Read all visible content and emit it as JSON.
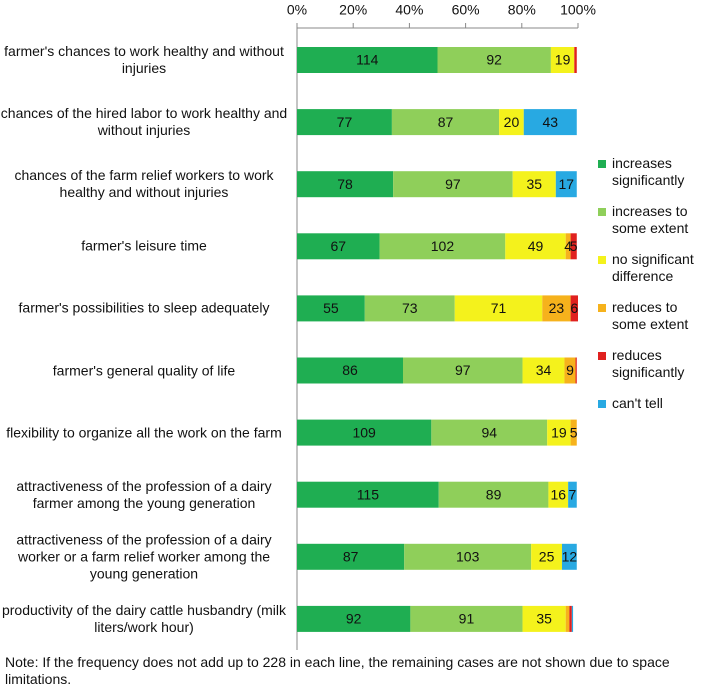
{
  "chart_data": {
    "type": "stacked-bar-horizontal",
    "categories": [
      "farmer's chances to work healthy and without injuries",
      "chances of the hired labor to work healthy and without injuries",
      "chances of the farm relief workers to work healthy and without injuries",
      "farmer's leisure time",
      "farmer's possibilities to sleep adequately",
      "farmer's general quality of life",
      "flexibility to organize all the work on the farm",
      "attractiveness of the profession of a dairy farmer among the young generation",
      "attractiveness of the profession of a dairy worker or a farm relief worker among the young generation",
      "productivity of the dairy cattle husbandry (milk liters/work hour)"
    ],
    "series": [
      {
        "name": "increases significantly",
        "color": "#1fae52",
        "values": [
          114,
          77,
          78,
          67,
          55,
          86,
          109,
          115,
          87,
          92
        ]
      },
      {
        "name": "increases to some extent",
        "color": "#8fcf5a",
        "values": [
          92,
          87,
          97,
          102,
          73,
          97,
          94,
          89,
          103,
          91
        ]
      },
      {
        "name": "no significant difference",
        "color": "#f4f21c",
        "values": [
          19,
          20,
          35,
          49,
          71,
          34,
          19,
          16,
          25,
          35
        ]
      },
      {
        "name": "reduces to some extent",
        "color": "#f6b21c",
        "values": [
          null,
          null,
          null,
          4,
          23,
          9,
          5,
          null,
          null,
          3
        ]
      },
      {
        "name": "reduces significantly",
        "color": "#e0211f",
        "values": [
          2,
          null,
          null,
          5,
          6,
          1,
          null,
          null,
          null,
          2
        ]
      },
      {
        "name": "can't tell",
        "color": "#28a9e2",
        "values": [
          null,
          43,
          17,
          null,
          null,
          null,
          null,
          7,
          12,
          1
        ]
      }
    ],
    "xlim": [
      0,
      228
    ],
    "xticks": [
      {
        "value": 0,
        "label": "0%"
      },
      {
        "value": 45.6,
        "label": "20%"
      },
      {
        "value": 91.2,
        "label": "40%"
      },
      {
        "value": 136.8,
        "label": "60%"
      },
      {
        "value": 182.4,
        "label": "80%"
      },
      {
        "value": 228,
        "label": "100%"
      }
    ],
    "legend": "right",
    "note": "Note: If the frequency does not add up to 228 in each line, the remaining cases are not shown due to space limitations."
  }
}
